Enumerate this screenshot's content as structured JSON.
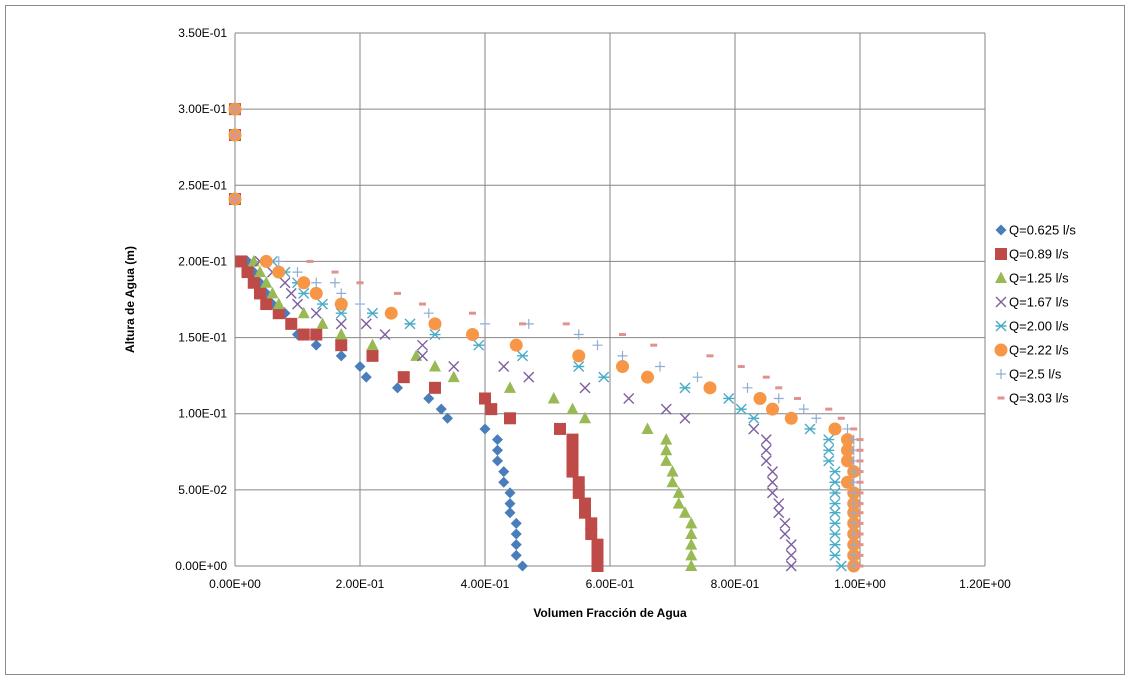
{
  "chart_data": {
    "type": "scatter",
    "title": "",
    "xlabel": "Volumen Fracción de Agua",
    "ylabel": "Altura de Agua (m)",
    "xlim": [
      0,
      1.2
    ],
    "ylim": [
      0,
      0.35
    ],
    "x_ticks": [
      0,
      0.2,
      0.4,
      0.6,
      0.8,
      1.0,
      1.2
    ],
    "x_tick_labels": [
      "0.00E+00",
      "2.00E-01",
      "4.00E-01",
      "6.00E-01",
      "8.00E-01",
      "1.00E+00",
      "1.20E+00"
    ],
    "y_ticks": [
      0,
      0.05,
      0.1,
      0.15,
      0.2,
      0.25,
      0.3,
      0.35
    ],
    "y_tick_labels": [
      "0.00E+00",
      "5.00E-02",
      "1.00E-01",
      "1.50E-01",
      "2.00E-01",
      "2.50E-01",
      "3.00E-01",
      "3.50E-01"
    ],
    "grid": true,
    "legend_position": "right",
    "series": [
      {
        "name": "Q=0.625 l/s",
        "marker": "diamond",
        "color": "#4a7ebb",
        "points": [
          [
            0,
            0.3
          ],
          [
            0,
            0.283
          ],
          [
            0,
            0.241
          ],
          [
            0.02,
            0.2
          ],
          [
            0.03,
            0.193
          ],
          [
            0.04,
            0.186
          ],
          [
            0.05,
            0.179
          ],
          [
            0.06,
            0.172
          ],
          [
            0.08,
            0.166
          ],
          [
            0.09,
            0.159
          ],
          [
            0.1,
            0.152
          ],
          [
            0.13,
            0.145
          ],
          [
            0.17,
            0.138
          ],
          [
            0.2,
            0.131
          ],
          [
            0.21,
            0.124
          ],
          [
            0.26,
            0.117
          ],
          [
            0.31,
            0.11
          ],
          [
            0.33,
            0.103
          ],
          [
            0.34,
            0.097
          ],
          [
            0.4,
            0.09
          ],
          [
            0.42,
            0.083
          ],
          [
            0.42,
            0.076
          ],
          [
            0.42,
            0.069
          ],
          [
            0.43,
            0.062
          ],
          [
            0.43,
            0.055
          ],
          [
            0.44,
            0.048
          ],
          [
            0.44,
            0.041
          ],
          [
            0.44,
            0.035
          ],
          [
            0.45,
            0.028
          ],
          [
            0.45,
            0.021
          ],
          [
            0.45,
            0.014
          ],
          [
            0.45,
            0.007
          ],
          [
            0.46,
            0.0
          ]
        ]
      },
      {
        "name": "Q=0.89 l/s",
        "marker": "square",
        "color": "#be4b48",
        "points": [
          [
            0,
            0.3
          ],
          [
            0,
            0.283
          ],
          [
            0,
            0.241
          ],
          [
            0.01,
            0.2
          ],
          [
            0.02,
            0.193
          ],
          [
            0.03,
            0.186
          ],
          [
            0.04,
            0.179
          ],
          [
            0.05,
            0.172
          ],
          [
            0.07,
            0.166
          ],
          [
            0.09,
            0.159
          ],
          [
            0.11,
            0.152
          ],
          [
            0.13,
            0.152
          ],
          [
            0.17,
            0.145
          ],
          [
            0.22,
            0.138
          ],
          [
            0.27,
            0.124
          ],
          [
            0.32,
            0.117
          ],
          [
            0.4,
            0.11
          ],
          [
            0.41,
            0.103
          ],
          [
            0.44,
            0.097
          ],
          [
            0.52,
            0.09
          ],
          [
            0.54,
            0.083
          ],
          [
            0.54,
            0.076
          ],
          [
            0.54,
            0.069
          ],
          [
            0.54,
            0.062
          ],
          [
            0.55,
            0.055
          ],
          [
            0.55,
            0.048
          ],
          [
            0.56,
            0.041
          ],
          [
            0.56,
            0.035
          ],
          [
            0.57,
            0.028
          ],
          [
            0.57,
            0.021
          ],
          [
            0.58,
            0.014
          ],
          [
            0.58,
            0.007
          ],
          [
            0.58,
            0.0
          ]
        ]
      },
      {
        "name": "Q=1.25 l/s",
        "marker": "triangle",
        "color": "#98b954",
        "points": [
          [
            0,
            0.3
          ],
          [
            0,
            0.283
          ],
          [
            0,
            0.241
          ],
          [
            0.03,
            0.2
          ],
          [
            0.04,
            0.193
          ],
          [
            0.05,
            0.186
          ],
          [
            0.06,
            0.179
          ],
          [
            0.07,
            0.172
          ],
          [
            0.11,
            0.166
          ],
          [
            0.14,
            0.159
          ],
          [
            0.17,
            0.152
          ],
          [
            0.22,
            0.145
          ],
          [
            0.29,
            0.138
          ],
          [
            0.32,
            0.131
          ],
          [
            0.35,
            0.124
          ],
          [
            0.44,
            0.117
          ],
          [
            0.51,
            0.11
          ],
          [
            0.54,
            0.103
          ],
          [
            0.56,
            0.097
          ],
          [
            0.66,
            0.09
          ],
          [
            0.69,
            0.083
          ],
          [
            0.69,
            0.076
          ],
          [
            0.69,
            0.069
          ],
          [
            0.7,
            0.062
          ],
          [
            0.7,
            0.055
          ],
          [
            0.71,
            0.048
          ],
          [
            0.71,
            0.041
          ],
          [
            0.72,
            0.035
          ],
          [
            0.73,
            0.028
          ],
          [
            0.73,
            0.021
          ],
          [
            0.73,
            0.014
          ],
          [
            0.73,
            0.007
          ],
          [
            0.73,
            0.0
          ]
        ]
      },
      {
        "name": "Q=1.67 l/s",
        "marker": "x",
        "color": "#7d5fa0",
        "points": [
          [
            0,
            0.3
          ],
          [
            0,
            0.283
          ],
          [
            0,
            0.241
          ],
          [
            0.04,
            0.2
          ],
          [
            0.06,
            0.193
          ],
          [
            0.08,
            0.186
          ],
          [
            0.09,
            0.179
          ],
          [
            0.1,
            0.172
          ],
          [
            0.13,
            0.166
          ],
          [
            0.17,
            0.159
          ],
          [
            0.21,
            0.159
          ],
          [
            0.24,
            0.152
          ],
          [
            0.3,
            0.145
          ],
          [
            0.3,
            0.138
          ],
          [
            0.35,
            0.131
          ],
          [
            0.43,
            0.131
          ],
          [
            0.47,
            0.124
          ],
          [
            0.56,
            0.117
          ],
          [
            0.63,
            0.11
          ],
          [
            0.69,
            0.103
          ],
          [
            0.72,
            0.097
          ],
          [
            0.83,
            0.09
          ],
          [
            0.85,
            0.083
          ],
          [
            0.85,
            0.076
          ],
          [
            0.85,
            0.069
          ],
          [
            0.86,
            0.062
          ],
          [
            0.86,
            0.055
          ],
          [
            0.86,
            0.048
          ],
          [
            0.87,
            0.041
          ],
          [
            0.87,
            0.035
          ],
          [
            0.88,
            0.028
          ],
          [
            0.88,
            0.021
          ],
          [
            0.89,
            0.014
          ],
          [
            0.89,
            0.007
          ],
          [
            0.89,
            0.0
          ]
        ]
      },
      {
        "name": "Q=2.00 l/s",
        "marker": "asterisk",
        "color": "#4bacc6",
        "points": [
          [
            0,
            0.3
          ],
          [
            0,
            0.283
          ],
          [
            0,
            0.241
          ],
          [
            0.06,
            0.2
          ],
          [
            0.08,
            0.193
          ],
          [
            0.1,
            0.186
          ],
          [
            0.11,
            0.179
          ],
          [
            0.14,
            0.172
          ],
          [
            0.17,
            0.166
          ],
          [
            0.22,
            0.166
          ],
          [
            0.28,
            0.159
          ],
          [
            0.32,
            0.152
          ],
          [
            0.39,
            0.145
          ],
          [
            0.46,
            0.138
          ],
          [
            0.55,
            0.131
          ],
          [
            0.59,
            0.124
          ],
          [
            0.72,
            0.117
          ],
          [
            0.79,
            0.11
          ],
          [
            0.81,
            0.103
          ],
          [
            0.83,
            0.097
          ],
          [
            0.92,
            0.09
          ],
          [
            0.95,
            0.083
          ],
          [
            0.95,
            0.076
          ],
          [
            0.95,
            0.069
          ],
          [
            0.96,
            0.062
          ],
          [
            0.96,
            0.055
          ],
          [
            0.96,
            0.048
          ],
          [
            0.96,
            0.041
          ],
          [
            0.96,
            0.035
          ],
          [
            0.96,
            0.028
          ],
          [
            0.96,
            0.021
          ],
          [
            0.96,
            0.014
          ],
          [
            0.96,
            0.007
          ],
          [
            0.97,
            0.0
          ]
        ]
      },
      {
        "name": "Q=2.22 l/s",
        "marker": "circle",
        "color": "#f79646",
        "points": [
          [
            0,
            0.3
          ],
          [
            0,
            0.283
          ],
          [
            0,
            0.241
          ],
          [
            0.05,
            0.2
          ],
          [
            0.07,
            0.193
          ],
          [
            0.11,
            0.186
          ],
          [
            0.13,
            0.179
          ],
          [
            0.17,
            0.172
          ],
          [
            0.25,
            0.166
          ],
          [
            0.32,
            0.159
          ],
          [
            0.38,
            0.152
          ],
          [
            0.45,
            0.145
          ],
          [
            0.55,
            0.138
          ],
          [
            0.62,
            0.131
          ],
          [
            0.66,
            0.124
          ],
          [
            0.76,
            0.117
          ],
          [
            0.84,
            0.11
          ],
          [
            0.86,
            0.103
          ],
          [
            0.89,
            0.097
          ],
          [
            0.96,
            0.09
          ],
          [
            0.98,
            0.083
          ],
          [
            0.98,
            0.076
          ],
          [
            0.98,
            0.069
          ],
          [
            0.99,
            0.062
          ],
          [
            0.98,
            0.055
          ],
          [
            0.99,
            0.048
          ],
          [
            0.99,
            0.041
          ],
          [
            0.99,
            0.035
          ],
          [
            0.99,
            0.028
          ],
          [
            0.99,
            0.021
          ],
          [
            0.99,
            0.014
          ],
          [
            0.99,
            0.007
          ],
          [
            0.99,
            0.0
          ]
        ]
      },
      {
        "name": "Q=2.5 l/s",
        "marker": "plus",
        "color": "#8eaed6",
        "points": [
          [
            0,
            0.3
          ],
          [
            0,
            0.283
          ],
          [
            0,
            0.241
          ],
          [
            0.07,
            0.2
          ],
          [
            0.1,
            0.193
          ],
          [
            0.13,
            0.186
          ],
          [
            0.16,
            0.186
          ],
          [
            0.17,
            0.179
          ],
          [
            0.2,
            0.172
          ],
          [
            0.31,
            0.166
          ],
          [
            0.4,
            0.159
          ],
          [
            0.47,
            0.159
          ],
          [
            0.55,
            0.152
          ],
          [
            0.58,
            0.145
          ],
          [
            0.62,
            0.138
          ],
          [
            0.68,
            0.131
          ],
          [
            0.74,
            0.124
          ],
          [
            0.82,
            0.117
          ],
          [
            0.87,
            0.11
          ],
          [
            0.91,
            0.103
          ],
          [
            0.93,
            0.097
          ],
          [
            0.98,
            0.09
          ],
          [
            0.99,
            0.083
          ],
          [
            0.99,
            0.076
          ],
          [
            0.99,
            0.069
          ],
          [
            0.99,
            0.062
          ],
          [
            0.99,
            0.055
          ],
          [
            0.99,
            0.048
          ],
          [
            0.99,
            0.041
          ],
          [
            0.99,
            0.035
          ],
          [
            0.99,
            0.028
          ],
          [
            0.99,
            0.021
          ],
          [
            0.99,
            0.014
          ],
          [
            0.99,
            0.007
          ],
          [
            0.99,
            0.0
          ]
        ]
      },
      {
        "name": "Q=3.03 l/s",
        "marker": "dash",
        "color": "#e0928f",
        "points": [
          [
            0,
            0.3
          ],
          [
            0,
            0.283
          ],
          [
            0,
            0.241
          ],
          [
            0.12,
            0.2
          ],
          [
            0.16,
            0.193
          ],
          [
            0.2,
            0.186
          ],
          [
            0.26,
            0.179
          ],
          [
            0.3,
            0.172
          ],
          [
            0.38,
            0.166
          ],
          [
            0.46,
            0.159
          ],
          [
            0.53,
            0.159
          ],
          [
            0.62,
            0.152
          ],
          [
            0.67,
            0.145
          ],
          [
            0.76,
            0.138
          ],
          [
            0.81,
            0.131
          ],
          [
            0.85,
            0.124
          ],
          [
            0.87,
            0.117
          ],
          [
            0.9,
            0.11
          ],
          [
            0.95,
            0.103
          ],
          [
            0.97,
            0.097
          ],
          [
            0.99,
            0.09
          ],
          [
            1.0,
            0.083
          ],
          [
            1.0,
            0.076
          ],
          [
            1.0,
            0.069
          ],
          [
            1.0,
            0.062
          ],
          [
            1.0,
            0.055
          ],
          [
            1.0,
            0.048
          ],
          [
            1.0,
            0.041
          ],
          [
            1.0,
            0.035
          ],
          [
            1.0,
            0.028
          ],
          [
            1.0,
            0.021
          ],
          [
            1.0,
            0.014
          ],
          [
            1.0,
            0.007
          ],
          [
            1.0,
            0.0
          ]
        ]
      }
    ]
  }
}
